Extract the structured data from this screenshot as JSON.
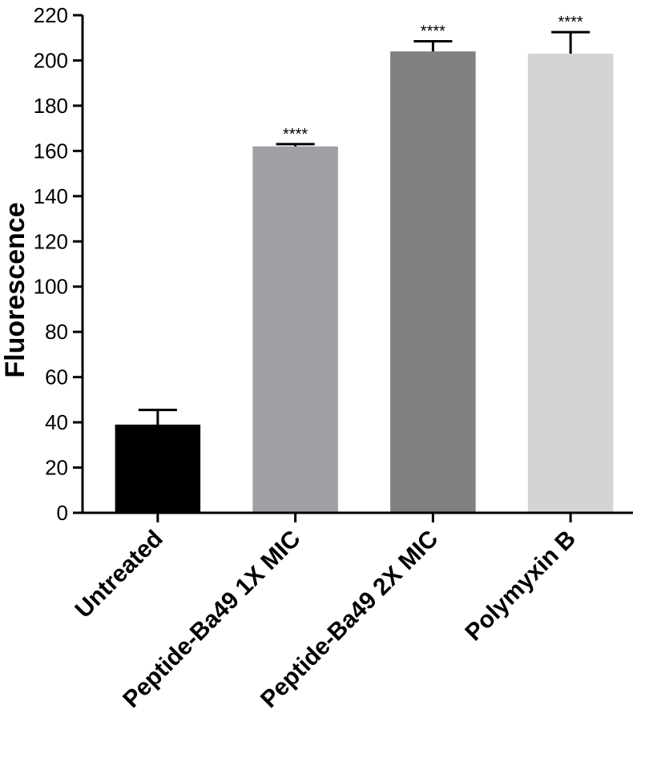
{
  "chart_data": {
    "type": "bar",
    "ylabel": "Fluorescence",
    "xlabel": "",
    "ylim": [
      0,
      220
    ],
    "yticks": [
      0,
      20,
      40,
      60,
      80,
      100,
      120,
      140,
      160,
      180,
      200,
      220
    ],
    "ytick_labels": [
      "0",
      "20",
      "40",
      "60",
      "80",
      "100",
      "120",
      "140",
      "160",
      "180",
      "200",
      "220"
    ],
    "categories": [
      "Untreated",
      "Peptide-Ba49 1X MIC",
      "Peptide-Ba49 2X MIC",
      "Polymyxin B"
    ],
    "values": [
      39,
      162,
      204,
      203
    ],
    "errors": [
      6.5,
      1,
      4.5,
      9.5
    ],
    "significance": [
      "",
      "****",
      "****",
      "****"
    ],
    "colors": [
      "#000000",
      "#a0a0a4",
      "#808080",
      "#d4d4d4"
    ],
    "grid": false
  }
}
